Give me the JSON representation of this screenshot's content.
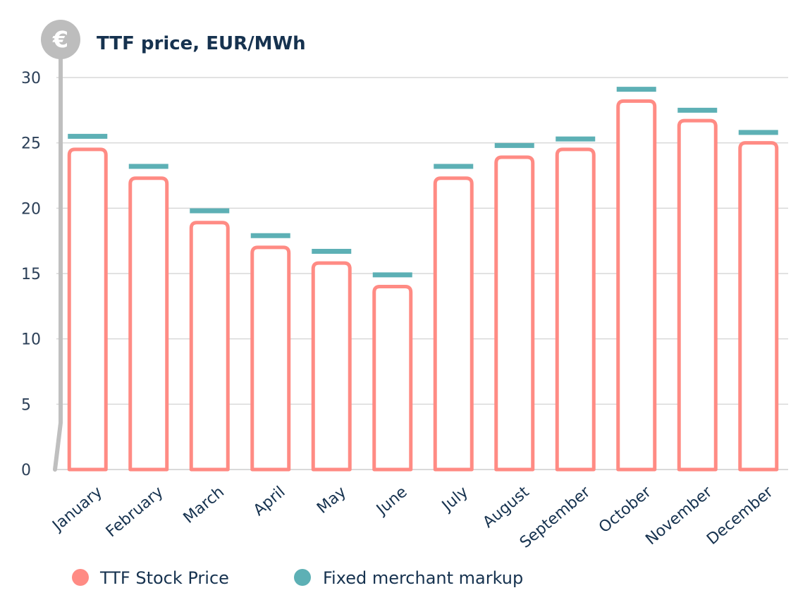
{
  "chart_data": {
    "type": "bar",
    "title": "TTF price, EUR/MWh",
    "xlabel": "",
    "ylabel": "",
    "ylim": [
      0,
      30
    ],
    "y_ticks": [
      "0",
      "5",
      "10",
      "15",
      "20",
      "25",
      "30"
    ],
    "grid": true,
    "legend_position": "bottom-left",
    "categories": [
      "January",
      "February",
      "March",
      "April",
      "May",
      "June",
      "July",
      "August",
      "September",
      "October",
      "November",
      "December"
    ],
    "series": [
      {
        "name": "TTF Stock Price",
        "style": "outlined-bar",
        "values": [
          24.5,
          22.3,
          18.9,
          17.0,
          15.8,
          14.0,
          22.3,
          23.9,
          24.5,
          28.2,
          26.7,
          25.0
        ]
      },
      {
        "name": "Fixed merchant markup",
        "style": "marker-line",
        "values": [
          25.5,
          23.2,
          19.8,
          17.9,
          16.7,
          14.9,
          23.2,
          24.8,
          25.3,
          29.1,
          27.5,
          25.8
        ]
      }
    ],
    "axis_icon": "euro-icon"
  },
  "colors": {
    "title": "#16324f",
    "tick_text": "#2b3f57",
    "grid": "#d9d9d9",
    "axis": "#bfbfbf",
    "price_bar": "#ff8b84",
    "markup_line": "#5db0b5",
    "icon_circle": "#bdbdbd",
    "icon_symbol": "#ffffff"
  },
  "icon_glyph": "€"
}
